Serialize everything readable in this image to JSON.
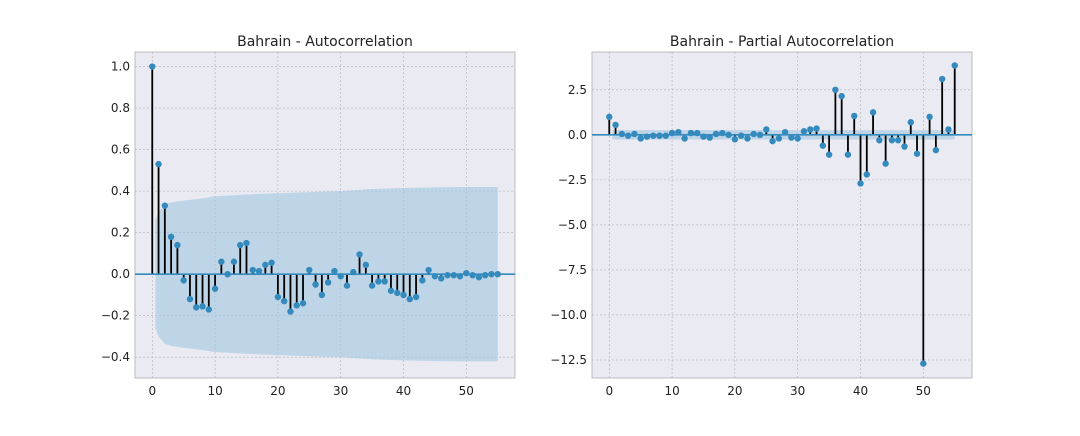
{
  "colors": {
    "axes_background": "#eaeaf2",
    "grid": "#b0b0b0",
    "marker": "#348abd",
    "stem": "#000000",
    "zero_line": "#348abd",
    "confidence_band": "#a6c8e0"
  },
  "chart_data": [
    {
      "type": "stem",
      "title": "Bahrain - Autocorrelation",
      "xlabel": "",
      "ylabel": "",
      "xlim": [
        -2.75,
        57.75
      ],
      "ylim": [
        -0.5,
        1.07
      ],
      "xticks": [
        0,
        10,
        20,
        30,
        40,
        50
      ],
      "xtick_labels": [
        "0",
        "10",
        "20",
        "30",
        "40",
        "50"
      ],
      "yticks": [
        -0.4,
        -0.2,
        0.0,
        0.2,
        0.4,
        0.6,
        0.8,
        1.0
      ],
      "ytick_labels": [
        "−0.4",
        "−0.2",
        "0.0",
        "0.2",
        "0.4",
        "0.6",
        "0.8",
        "1.0"
      ],
      "grid": true,
      "lags": [
        0,
        1,
        2,
        3,
        4,
        5,
        6,
        7,
        8,
        9,
        10,
        11,
        12,
        13,
        14,
        15,
        16,
        17,
        18,
        19,
        20,
        21,
        22,
        23,
        24,
        25,
        26,
        27,
        28,
        29,
        30,
        31,
        32,
        33,
        34,
        35,
        36,
        37,
        38,
        39,
        40,
        41,
        42,
        43,
        44,
        45,
        46,
        47,
        48,
        49,
        50,
        51,
        52,
        53,
        54,
        55
      ],
      "values": [
        1.0,
        0.53,
        0.33,
        0.18,
        0.14,
        -0.03,
        -0.12,
        -0.16,
        -0.155,
        -0.17,
        -0.07,
        0.06,
        0.0,
        0.06,
        0.14,
        0.15,
        0.02,
        0.015,
        0.045,
        0.055,
        -0.11,
        -0.13,
        -0.18,
        -0.15,
        -0.14,
        0.02,
        -0.05,
        -0.1,
        -0.04,
        0.015,
        -0.01,
        -0.055,
        0.01,
        0.095,
        0.045,
        -0.055,
        -0.035,
        -0.035,
        -0.08,
        -0.09,
        -0.1,
        -0.12,
        -0.11,
        -0.03,
        0.02,
        -0.01,
        -0.02,
        -0.005,
        -0.005,
        -0.01,
        0.005,
        -0.005,
        -0.015,
        -0.005,
        0.0,
        0.0
      ],
      "confidence_band": {
        "lags": [
          0.5,
          1,
          2,
          3,
          4,
          5,
          6,
          8,
          10,
          13,
          16,
          20,
          25,
          30,
          35,
          40,
          45,
          50,
          55
        ],
        "upper": [
          0.26,
          0.3,
          0.335,
          0.345,
          0.35,
          0.355,
          0.358,
          0.365,
          0.375,
          0.38,
          0.385,
          0.39,
          0.395,
          0.4,
          0.41,
          0.415,
          0.418,
          0.42,
          0.42
        ]
      }
    },
    {
      "type": "stem",
      "title": "Bahrain - Partial Autocorrelation",
      "xlabel": "",
      "ylabel": "",
      "xlim": [
        -2.75,
        57.75
      ],
      "ylim": [
        -13.5,
        4.6
      ],
      "xticks": [
        0,
        10,
        20,
        30,
        40,
        50
      ],
      "xtick_labels": [
        "0",
        "10",
        "20",
        "30",
        "40",
        "50"
      ],
      "yticks": [
        -12.5,
        -10.0,
        -7.5,
        -5.0,
        -2.5,
        0.0,
        2.5
      ],
      "ytick_labels": [
        "−12.5",
        "−10.0",
        "−7.5",
        "−5.0",
        "−2.5",
        "0.0",
        "2.5"
      ],
      "grid": true,
      "lags": [
        0,
        1,
        2,
        3,
        4,
        5,
        6,
        7,
        8,
        9,
        10,
        11,
        12,
        13,
        14,
        15,
        16,
        17,
        18,
        19,
        20,
        21,
        22,
        23,
        24,
        25,
        26,
        27,
        28,
        29,
        30,
        31,
        32,
        33,
        34,
        35,
        36,
        37,
        38,
        39,
        40,
        41,
        42,
        43,
        44,
        45,
        46,
        47,
        48,
        49,
        50,
        51,
        52,
        53,
        54,
        55
      ],
      "values": [
        1.0,
        0.55,
        0.05,
        -0.05,
        0.05,
        -0.2,
        -0.1,
        -0.05,
        -0.05,
        -0.05,
        0.1,
        0.15,
        -0.2,
        0.1,
        0.1,
        -0.1,
        -0.15,
        0.05,
        0.1,
        0.0,
        -0.25,
        -0.05,
        -0.2,
        0.05,
        0.0,
        0.3,
        -0.35,
        -0.2,
        0.15,
        -0.15,
        -0.2,
        0.2,
        0.3,
        0.35,
        -0.6,
        -1.1,
        2.5,
        2.15,
        -1.1,
        1.05,
        -2.7,
        -2.2,
        1.25,
        -0.3,
        -1.6,
        -0.3,
        -0.3,
        -0.65,
        0.7,
        -1.05,
        -12.7,
        1.0,
        -0.85,
        3.1,
        0.3,
        3.85
      ],
      "confidence_band": {
        "lags": [
          0.5,
          55
        ],
        "upper": [
          0.26,
          0.26
        ]
      }
    }
  ]
}
